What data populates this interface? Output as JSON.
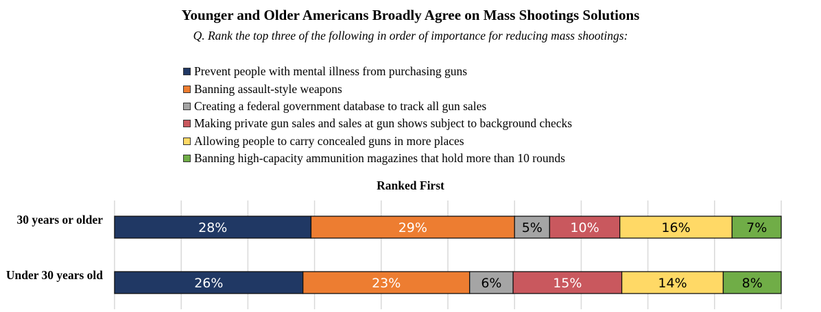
{
  "chart_data": {
    "type": "bar",
    "orientation": "horizontal",
    "stacked": true,
    "title": "Younger and Older Americans Broadly Agree on Mass Shootings Solutions",
    "subtitle": "Q. Rank the top three of the following in order of importance for reducing mass shootings:",
    "chart_title": "Ranked First",
    "categories": [
      "30 years or older",
      "Under 30 years old"
    ],
    "series": [
      {
        "name": "Prevent people with mental illness from purchasing guns",
        "color": "#203864",
        "label_color": "#ffffff",
        "values": [
          28,
          26
        ]
      },
      {
        "name": "Banning assault-style weapons",
        "color": "#ED7D31",
        "label_color": "#ffffff",
        "values": [
          29,
          23
        ]
      },
      {
        "name": "Creating a federal government database to track all gun sales",
        "color": "#A5A5A5",
        "label_color": "#000000",
        "values": [
          5,
          6
        ]
      },
      {
        "name": "Making private gun sales and sales at gun shows subject to background checks",
        "color": "#C9585E",
        "label_color": "#ffffff",
        "values": [
          10,
          15
        ]
      },
      {
        "name": "Allowing people to carry concealed guns in more places",
        "color": "#FFD966",
        "label_color": "#000000",
        "values": [
          16,
          14
        ]
      },
      {
        "name": "Banning high-capacity ammunition magazines that hold more than 10 rounds",
        "color": "#70AD47",
        "label_color": "#000000",
        "values": [
          7,
          8
        ]
      }
    ],
    "value_suffix": "%",
    "legend_placement": "top",
    "grid": true,
    "xlim": [
      0,
      100
    ]
  }
}
